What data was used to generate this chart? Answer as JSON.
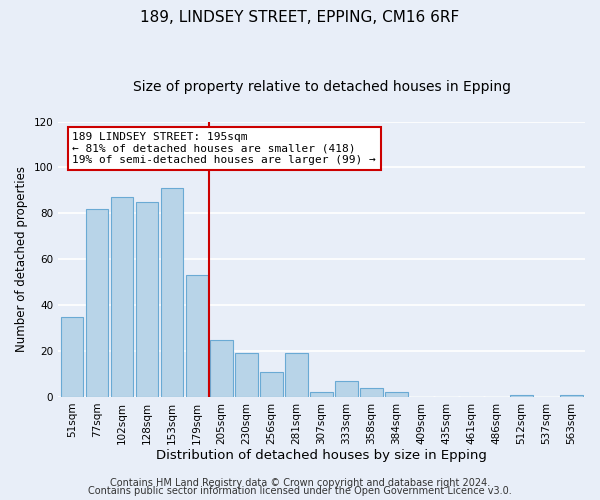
{
  "title": "189, LINDSEY STREET, EPPING, CM16 6RF",
  "subtitle": "Size of property relative to detached houses in Epping",
  "xlabel": "Distribution of detached houses by size in Epping",
  "ylabel": "Number of detached properties",
  "bar_labels": [
    "51sqm",
    "77sqm",
    "102sqm",
    "128sqm",
    "153sqm",
    "179sqm",
    "205sqm",
    "230sqm",
    "256sqm",
    "281sqm",
    "307sqm",
    "333sqm",
    "358sqm",
    "384sqm",
    "409sqm",
    "435sqm",
    "461sqm",
    "486sqm",
    "512sqm",
    "537sqm",
    "563sqm"
  ],
  "bar_values": [
    35,
    82,
    87,
    85,
    91,
    53,
    25,
    19,
    11,
    19,
    2,
    7,
    4,
    2,
    0,
    0,
    0,
    0,
    1,
    0,
    1
  ],
  "bar_color": "#b8d4e8",
  "bar_edge_color": "#6aaad4",
  "vline_color": "#cc0000",
  "annotation_text": "189 LINDSEY STREET: 195sqm\n← 81% of detached houses are smaller (418)\n19% of semi-detached houses are larger (99) →",
  "annotation_box_color": "#ffffff",
  "annotation_box_edge": "#cc0000",
  "ylim": [
    0,
    120
  ],
  "yticks": [
    0,
    20,
    40,
    60,
    80,
    100,
    120
  ],
  "footer1": "Contains HM Land Registry data © Crown copyright and database right 2024.",
  "footer2": "Contains public sector information licensed under the Open Government Licence v3.0.",
  "background_color": "#e8eef8",
  "grid_color": "#ffffff",
  "title_fontsize": 11,
  "subtitle_fontsize": 10,
  "xlabel_fontsize": 9.5,
  "ylabel_fontsize": 8.5,
  "tick_fontsize": 7.5,
  "footer_fontsize": 7,
  "ann_fontsize": 8
}
